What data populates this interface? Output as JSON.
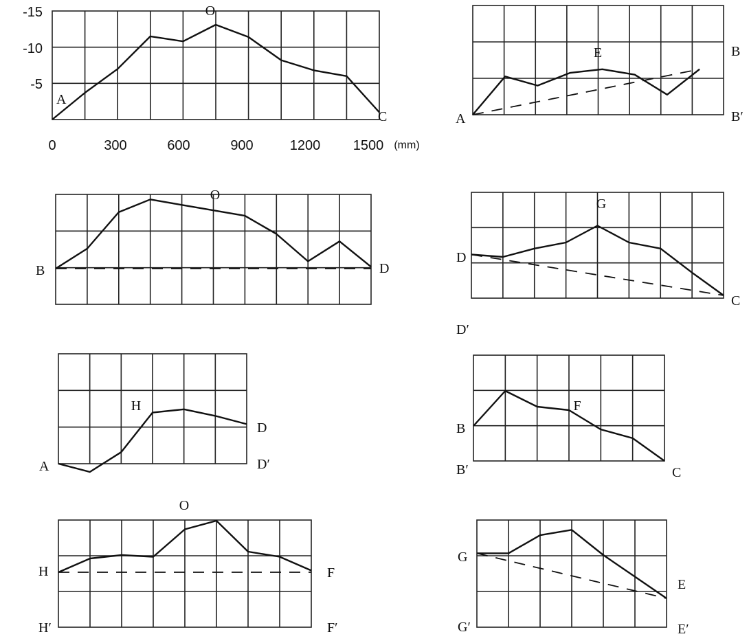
{
  "chart_data": [
    {
      "type": "line",
      "title": "",
      "xlabel": "",
      "ylabel": "",
      "x_ticks": [
        "0",
        "300",
        "600",
        "900",
        "1200",
        "1500"
      ],
      "x_unit": "(mm)",
      "y_ticks": [
        "-15",
        "-10",
        "-5"
      ],
      "xlim": [
        0,
        1500
      ],
      "ylim": [
        0,
        -15
      ],
      "grid": true,
      "labels": {
        "start": "A",
        "end": "C",
        "peak": "O"
      },
      "series": [
        {
          "style": "solid",
          "x": [
            0,
            150,
            300,
            450,
            600,
            750,
            900,
            1050,
            1200,
            1350,
            1500
          ],
          "y": [
            0,
            -3.7,
            -7,
            -11.5,
            -10.8,
            -13.1,
            -11.4,
            -8.2,
            -6.8,
            -6,
            -1
          ]
        }
      ]
    },
    {
      "type": "line",
      "title": "",
      "xlabel": "",
      "ylabel": "",
      "grid": true,
      "labels": {
        "start": "A",
        "end": "B",
        "end_base": "B′",
        "peak": "E"
      },
      "series": [
        {
          "style": "solid",
          "x": [
            0,
            1,
            2,
            3,
            4,
            5,
            6,
            7
          ],
          "y": [
            0,
            1.05,
            0.8,
            1.15,
            1.25,
            1.1,
            0.55,
            1.25
          ]
        },
        {
          "style": "dashed",
          "x": [
            0,
            7
          ],
          "y": [
            0,
            1.25
          ]
        }
      ]
    },
    {
      "type": "line",
      "title": "",
      "xlabel": "",
      "ylabel": "",
      "grid": true,
      "labels": {
        "start": "B",
        "end": "D",
        "peak": "O"
      },
      "series": [
        {
          "style": "solid",
          "x": [
            0,
            1,
            2,
            3,
            4,
            5,
            6,
            7,
            8,
            9,
            10
          ],
          "y": [
            0,
            0.55,
            1.55,
            1.9,
            1.75,
            1.6,
            1.45,
            0.95,
            0.2,
            0.75,
            0.05
          ]
        },
        {
          "style": "dashed",
          "x": [
            0,
            10
          ],
          "y": [
            0,
            0
          ]
        }
      ]
    },
    {
      "type": "line",
      "title": "",
      "xlabel": "",
      "ylabel": "",
      "grid": true,
      "labels": {
        "start": "D",
        "start_base": "D′",
        "end": "C",
        "peak": "G"
      },
      "series": [
        {
          "style": "solid",
          "x": [
            0,
            1,
            2,
            3,
            4,
            5,
            6,
            7,
            8
          ],
          "y": [
            1.3,
            1.2,
            1.55,
            1.8,
            2.5,
            1.8,
            1.55,
            0.55,
            -0.4
          ]
        },
        {
          "style": "dashed",
          "x": [
            0,
            8
          ],
          "y": [
            1.3,
            -0.4
          ]
        }
      ]
    },
    {
      "type": "line",
      "title": "",
      "xlabel": "",
      "ylabel": "",
      "grid": true,
      "labels": {
        "start": "A",
        "end": "D",
        "end_base": "D′",
        "peak": "H"
      },
      "series": [
        {
          "style": "solid",
          "x": [
            0,
            1,
            2,
            3,
            4,
            5,
            6
          ],
          "y": [
            0,
            -0.25,
            0.35,
            1.55,
            1.65,
            1.45,
            1.2
          ]
        }
      ]
    },
    {
      "type": "line",
      "title": "",
      "xlabel": "",
      "ylabel": "",
      "grid": true,
      "labels": {
        "start": "B",
        "start_base": "B′",
        "end": "C",
        "peak": "F"
      },
      "series": [
        {
          "style": "solid",
          "x": [
            0,
            1,
            2,
            3,
            4,
            5,
            6
          ],
          "y": [
            1,
            2,
            1.55,
            1.45,
            0.9,
            0.65,
            0
          ]
        }
      ]
    },
    {
      "type": "line",
      "title": "",
      "xlabel": "",
      "ylabel": "",
      "grid": true,
      "labels": {
        "start": "H",
        "start_base": "H′",
        "end": "F",
        "end_base": "F′",
        "peak": "O"
      },
      "series": [
        {
          "style": "solid",
          "x": [
            0,
            1,
            2,
            3,
            4,
            5,
            6,
            7,
            8
          ],
          "y": [
            0,
            0.4,
            0.5,
            0.45,
            1.25,
            1.5,
            0.6,
            0.45,
            0.05
          ]
        },
        {
          "style": "dashed",
          "x": [
            0,
            8
          ],
          "y": [
            0,
            0
          ]
        }
      ]
    },
    {
      "type": "line",
      "title": "",
      "xlabel": "",
      "ylabel": "",
      "grid": true,
      "labels": {
        "start": "G",
        "start_base": "G′",
        "end": "E",
        "end_base": "E′"
      },
      "series": [
        {
          "style": "solid",
          "x": [
            0,
            1,
            2,
            3,
            4,
            5,
            6
          ],
          "y": [
            2.05,
            2.05,
            2.55,
            2.7,
            2,
            1.4,
            0.8
          ]
        },
        {
          "style": "dashed",
          "x": [
            0,
            6
          ],
          "y": [
            2.05,
            0.8
          ]
        }
      ]
    }
  ]
}
